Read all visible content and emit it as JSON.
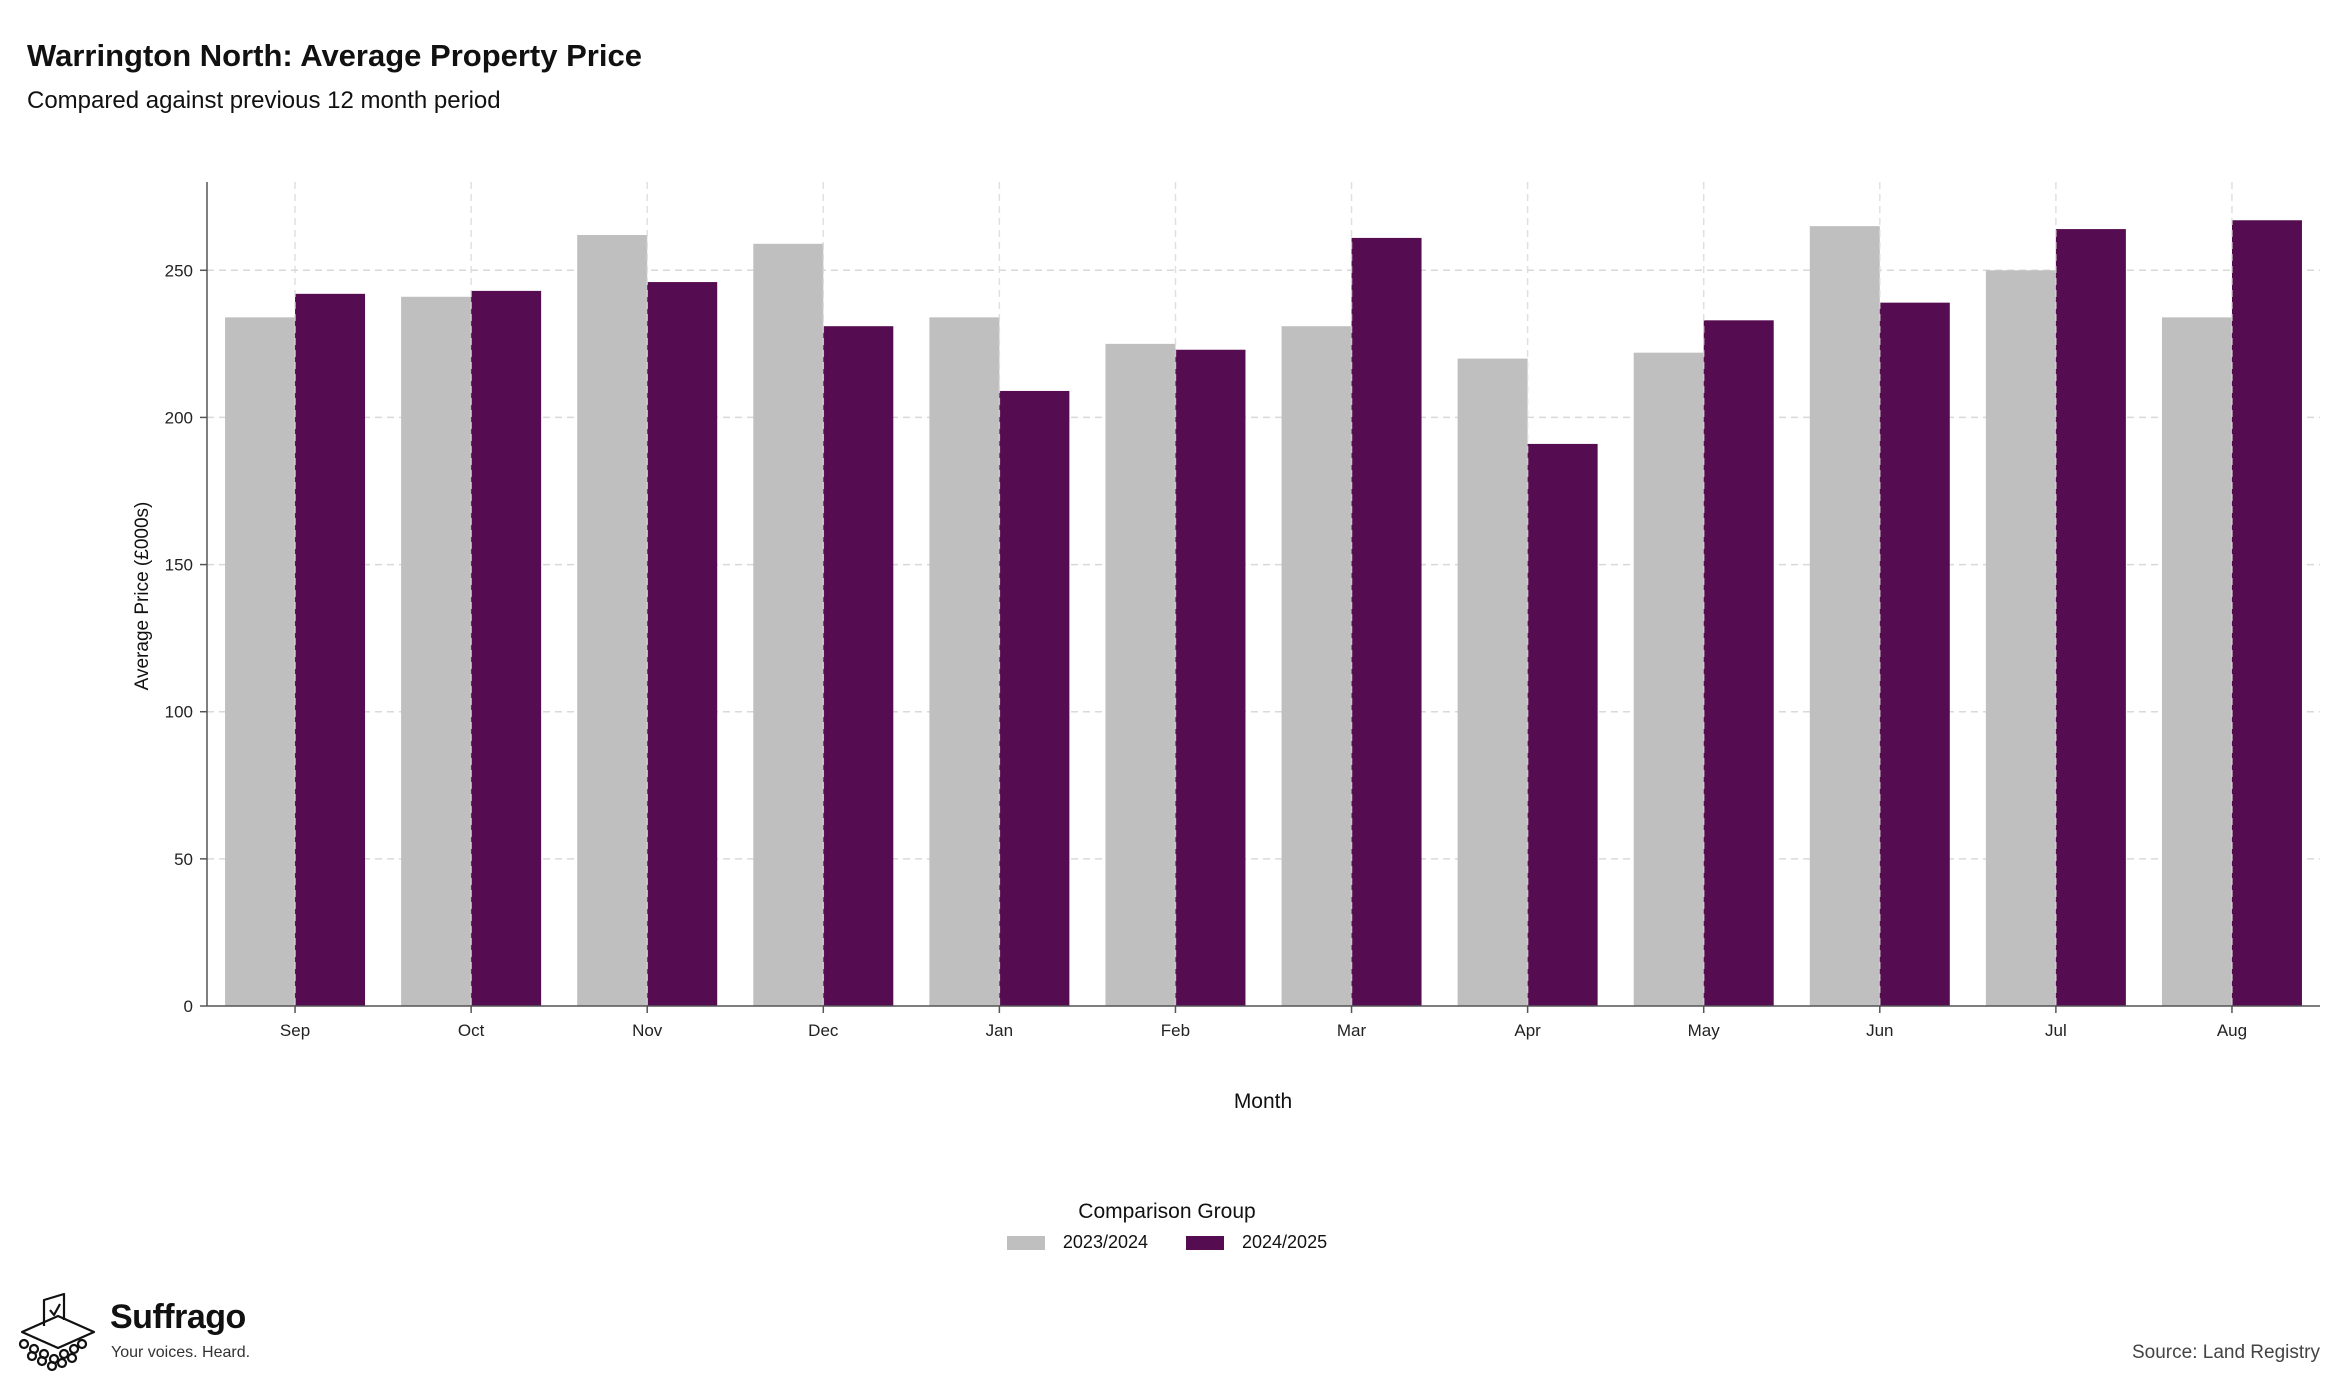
{
  "header": {
    "title": "Warrington North: Average Property Price",
    "subtitle": "Compared against previous 12 month period"
  },
  "chart_data": {
    "type": "bar",
    "categories": [
      "Sep",
      "Oct",
      "Nov",
      "Dec",
      "Jan",
      "Feb",
      "Mar",
      "Apr",
      "May",
      "Jun",
      "Jul",
      "Aug"
    ],
    "series": [
      {
        "name": "2023/2024",
        "color": "#bfbfbf",
        "values": [
          234,
          241,
          262,
          259,
          234,
          225,
          231,
          220,
          222,
          265,
          250,
          234
        ]
      },
      {
        "name": "2024/2025",
        "color": "#560c50",
        "values": [
          242,
          243,
          246,
          231,
          209,
          223,
          261,
          191,
          233,
          239,
          264,
          267
        ]
      }
    ],
    "xlabel": "Month",
    "ylabel": "Average Price (£000s)",
    "ylim": [
      0,
      280
    ],
    "yticks": [
      0,
      50,
      100,
      150,
      200,
      250
    ],
    "grid": true,
    "legend": {
      "title": "Comparison Group",
      "position": "bottom"
    }
  },
  "footer": {
    "brand": "Suffrago",
    "tagline": "Your voices. Heard.",
    "source": "Source: Land Registry"
  }
}
